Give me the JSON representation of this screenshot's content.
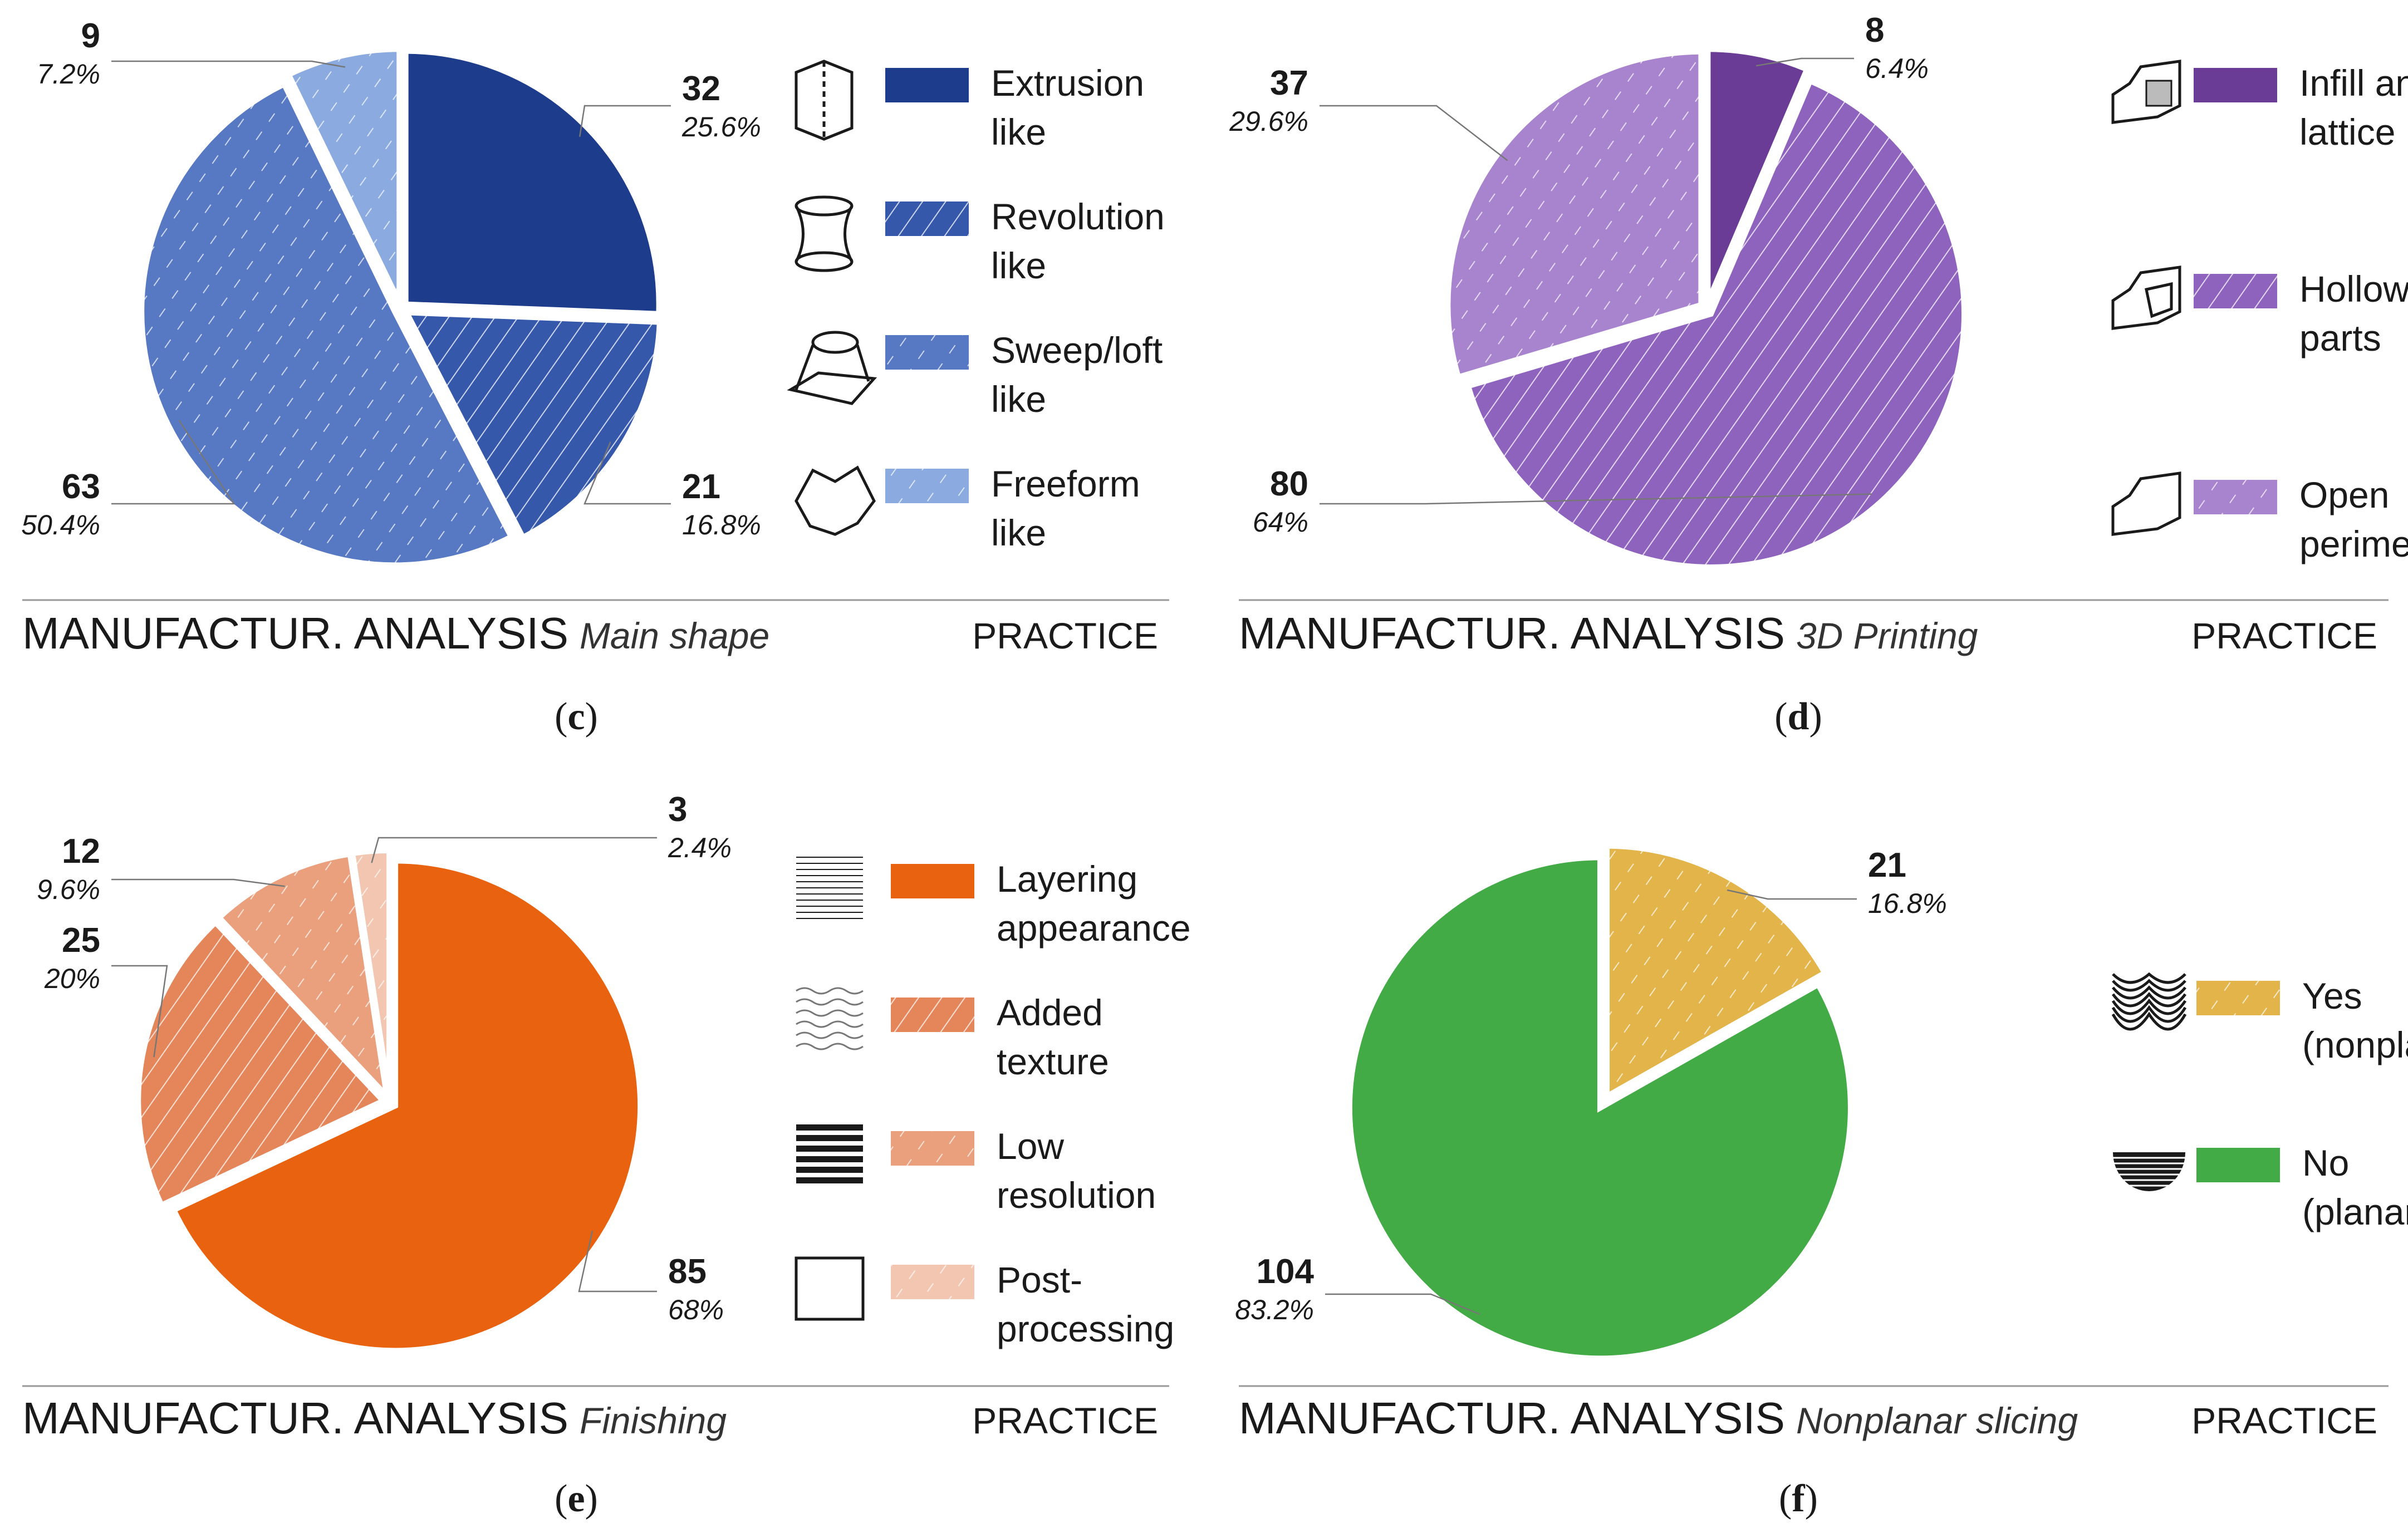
{
  "chart_data": [
    {
      "id": "c",
      "type": "pie",
      "caption_letter": "c",
      "title_main": "MANUFACTUR. ANALYSIS",
      "title_sub": "Main shape",
      "title_right": "PRACTICE",
      "slices": [
        {
          "name": "Extrusion like",
          "legend": [
            "Extrusion",
            "like"
          ],
          "value": 32,
          "label": "32",
          "percent": "25.6%",
          "color": "#1e3c8c",
          "pattern": "solid",
          "icon": "prism-icon"
        },
        {
          "name": "Revolution like",
          "legend": [
            "Revolution",
            "like"
          ],
          "value": 21,
          "label": "21",
          "percent": "16.8%",
          "color": "#3558aa",
          "pattern": "diagonal",
          "icon": "revolution-shape-icon"
        },
        {
          "name": "Sweep/loft like",
          "legend": [
            "Sweep/loft",
            "like"
          ],
          "value": 63,
          "label": "63",
          "percent": "50.4%",
          "color": "#5778c3",
          "pattern": "dash",
          "icon": "sweep-loft-icon"
        },
        {
          "name": "Freeform like",
          "legend": [
            "Freeform",
            "like"
          ],
          "value": 9,
          "label": "9",
          "percent": "7.2%",
          "color": "#8aaae0",
          "pattern": "dash",
          "icon": "freeform-icon"
        }
      ]
    },
    {
      "id": "d",
      "type": "pie",
      "caption_letter": "d",
      "title_main": "MANUFACTUR. ANALYSIS",
      "title_sub": "3D Printing",
      "title_right": "PRACTICE",
      "slices": [
        {
          "name": "Infill and lattice",
          "legend": [
            "Infill and",
            "lattice"
          ],
          "value": 8,
          "label": "8",
          "percent": "6.4%",
          "color": "#6a3c96",
          "pattern": "solid",
          "icon": "lattice-chair-icon"
        },
        {
          "name": "Hollowed parts",
          "legend": [
            "Hollowed",
            "parts"
          ],
          "value": 80,
          "label": "80",
          "percent": "64%",
          "color": "#8e63be",
          "pattern": "diagonal",
          "icon": "hollow-chair-icon"
        },
        {
          "name": "Open perimeters",
          "legend": [
            "Open",
            "perimeters"
          ],
          "value": 37,
          "label": "37",
          "percent": "29.6%",
          "color": "#a884cf",
          "pattern": "dash",
          "icon": "open-chair-icon"
        }
      ]
    },
    {
      "id": "e",
      "type": "pie",
      "caption_letter": "e",
      "title_main": "MANUFACTUR. ANALYSIS",
      "title_sub": "Finishing",
      "title_right": "PRACTICE",
      "slices": [
        {
          "name": "Layering appearance",
          "legend": [
            "Layering",
            "appearance"
          ],
          "value": 85,
          "label": "85",
          "percent": "68%",
          "color": "#e8620f",
          "pattern": "solid",
          "icon": "layer-lines-icon"
        },
        {
          "name": "Added texture",
          "legend": [
            "Added",
            "texture"
          ],
          "value": 25,
          "label": "25",
          "percent": "20%",
          "color": "#e4855a",
          "pattern": "diagonal",
          "icon": "wave-texture-icon"
        },
        {
          "name": "Low resolution",
          "legend": [
            "Low",
            "resolution"
          ],
          "value": 12,
          "label": "12",
          "percent": "9.6%",
          "color": "#eaa07c",
          "pattern": "dash",
          "icon": "thick-lines-icon"
        },
        {
          "name": "Post-processing",
          "legend": [
            "Post-",
            "processing"
          ],
          "value": 3,
          "label": "3",
          "percent": "2.4%",
          "color": "#f2c6b0",
          "pattern": "dash",
          "icon": "empty-square-icon"
        }
      ]
    },
    {
      "id": "f",
      "type": "pie",
      "caption_letter": "f",
      "title_main": "MANUFACTUR. ANALYSIS",
      "title_sub": "Nonplanar slicing",
      "title_right": "PRACTICE",
      "slices": [
        {
          "name": "Yes (nonplanar)",
          "legend": [
            "Yes",
            "(nonplanar)"
          ],
          "value": 21,
          "label": "21",
          "percent": "16.8%",
          "color": "#e2b44a",
          "pattern": "dash",
          "icon": "curved-layers-icon"
        },
        {
          "name": "No (planar)",
          "legend": [
            "No",
            "(planar)"
          ],
          "value": 104,
          "label": "104",
          "percent": "83.2%",
          "color": "#43ab45",
          "pattern": "solid",
          "icon": "flat-layers-icon"
        }
      ]
    }
  ]
}
